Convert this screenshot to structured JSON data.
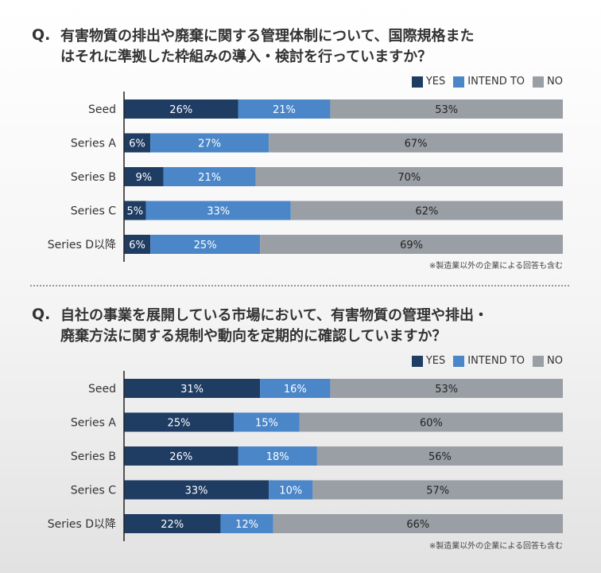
{
  "colors": {
    "yes": "#1f3c63",
    "intend": "#4a86c8",
    "no": "#9a9fa5",
    "axis": "#222222"
  },
  "legend": {
    "yes": "YES",
    "intend": "INTEND TO",
    "no": "NO"
  },
  "note": "※製造業以外の企業による回答も含む",
  "q_mark": "Q.",
  "chart_data": [
    {
      "type": "bar",
      "stacked": true,
      "orientation": "horizontal",
      "title_lines": [
        "有害物質の排出や廃棄に関する管理体制について、国際規格また",
        "はそれに準拠した枠組みの導入・検討を行っていますか？"
      ],
      "categories": [
        "Seed",
        "Series A",
        "Series B",
        "Series C",
        "Series D以降"
      ],
      "series": [
        {
          "name": "YES",
          "values": [
            26,
            6,
            9,
            5,
            6
          ]
        },
        {
          "name": "INTEND TO",
          "values": [
            21,
            27,
            21,
            33,
            25
          ]
        },
        {
          "name": "NO",
          "values": [
            53,
            67,
            70,
            62,
            69
          ]
        }
      ],
      "value_suffix": "%",
      "xlim": [
        0,
        100
      ],
      "legend_position": "top-right"
    },
    {
      "type": "bar",
      "stacked": true,
      "orientation": "horizontal",
      "title_lines": [
        "自社の事業を展開している市場において、有害物質の管理や排出・",
        "廃棄方法に関する規制や動向を定期的に確認していますか？"
      ],
      "categories": [
        "Seed",
        "Series A",
        "Series B",
        "Series C",
        "Series D以降"
      ],
      "series": [
        {
          "name": "YES",
          "values": [
            31,
            25,
            26,
            33,
            22
          ]
        },
        {
          "name": "INTEND TO",
          "values": [
            16,
            15,
            18,
            10,
            12
          ]
        },
        {
          "name": "NO",
          "values": [
            53,
            60,
            56,
            57,
            66
          ]
        }
      ],
      "value_suffix": "%",
      "xlim": [
        0,
        100
      ],
      "legend_position": "top-right"
    }
  ]
}
